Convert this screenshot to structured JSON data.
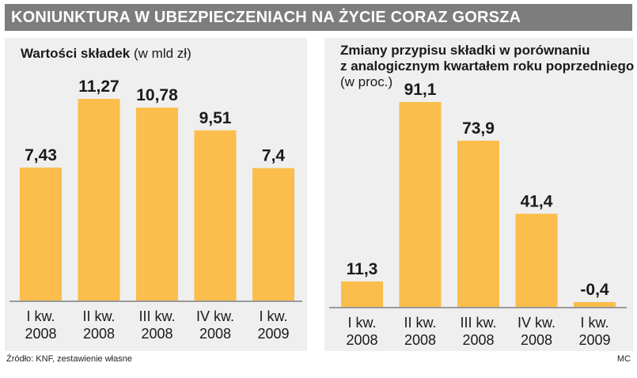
{
  "header": {
    "title": "KONIUNKTURA W UBEZPIECZENIACH NA ŻYCIE CORAZ GORSZA"
  },
  "colors": {
    "bar": "#fbbd4b",
    "panel": "#efefef",
    "title_bar": "#7d7d7d"
  },
  "chart_data": [
    {
      "type": "bar",
      "title": "Wartości składek",
      "unit": "(w mld zł)",
      "categories": [
        [
          "I kw.",
          "2008"
        ],
        [
          "II kw.",
          "2008"
        ],
        [
          "III kw.",
          "2008"
        ],
        [
          "IV kw.",
          "2008"
        ],
        [
          "I kw.",
          "2009"
        ]
      ],
      "values": [
        7.43,
        11.27,
        10.78,
        9.51,
        7.4
      ],
      "value_labels": [
        "7,43",
        "11,27",
        "10,78",
        "9,51",
        "7,4"
      ],
      "ylim": [
        0,
        11.27
      ]
    },
    {
      "type": "bar",
      "title_lines": [
        "Zmiany przypisu składki w porównaniu",
        "z analogicznym kwartałem roku poprzedniego"
      ],
      "unit": "(w proc.)",
      "categories": [
        [
          "I kw.",
          "2008"
        ],
        [
          "II kw.",
          "2008"
        ],
        [
          "III kw.",
          "2008"
        ],
        [
          "IV kw.",
          "2008"
        ],
        [
          "I kw.",
          "2009"
        ]
      ],
      "values": [
        11.3,
        91.1,
        73.9,
        41.4,
        -0.4
      ],
      "value_labels": [
        "11,3",
        "91,1",
        "73,9",
        "41,4",
        "-0,4"
      ],
      "ylim": [
        0,
        91.1
      ]
    }
  ],
  "footer": {
    "source": "Źródło: KNF, zestawienie własne",
    "author": "MC"
  }
}
